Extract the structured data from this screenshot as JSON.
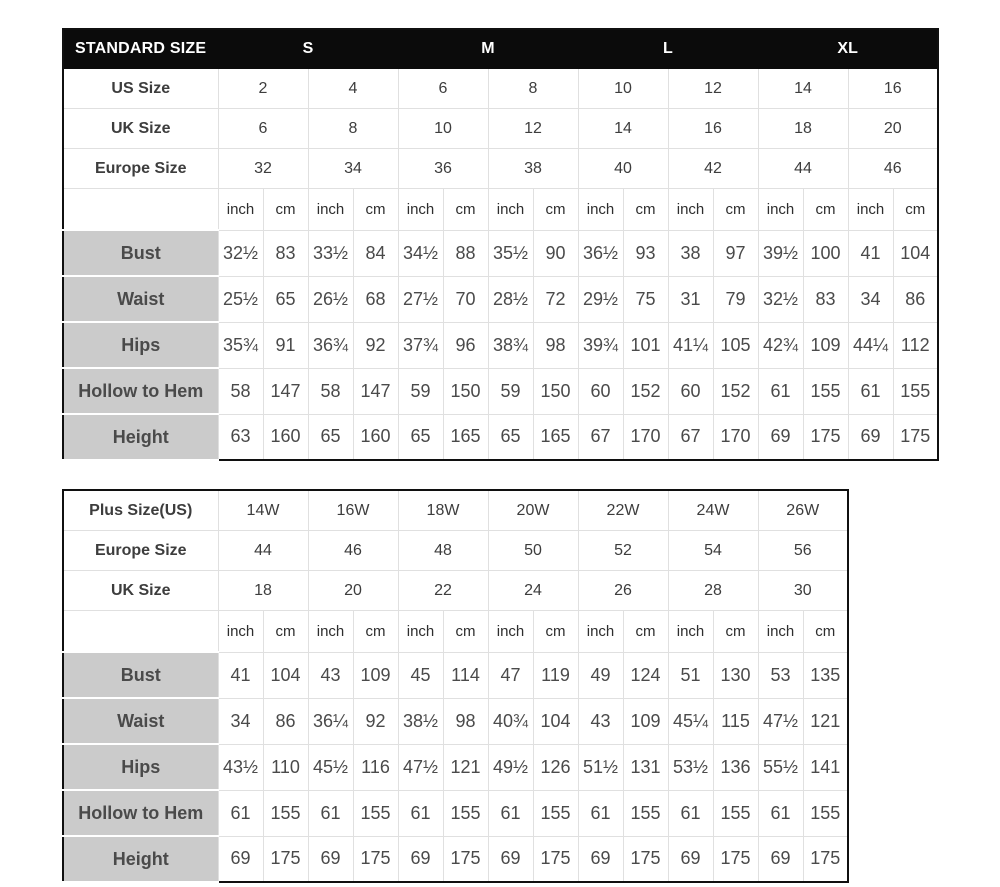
{
  "colors": {
    "header_bg": "#0b0b0b",
    "header_text": "#ffffff",
    "label_cell_bg": "#cbcbcb",
    "grid_line": "#e0e0e0",
    "outer_border": "#101010",
    "data_text": "#4a4a4a",
    "label_text": "#111111"
  },
  "standard_table": {
    "title": "STANDARD SIZE",
    "size_groups": [
      "S",
      "M",
      "L",
      "XL"
    ],
    "unit_pair": [
      "inch",
      "cm"
    ],
    "size_rows": [
      {
        "label": "US Size",
        "values": [
          "2",
          "4",
          "6",
          "8",
          "10",
          "12",
          "14",
          "16"
        ]
      },
      {
        "label": "UK Size",
        "values": [
          "6",
          "8",
          "10",
          "12",
          "14",
          "16",
          "18",
          "20"
        ]
      },
      {
        "label": "Europe Size",
        "values": [
          "32",
          "34",
          "36",
          "38",
          "40",
          "42",
          "44",
          "46"
        ]
      }
    ],
    "measure_rows": [
      {
        "label": "Bust",
        "values": [
          "32½",
          "83",
          "33½",
          "84",
          "34½",
          "88",
          "35½",
          "90",
          "36½",
          "93",
          "38",
          "97",
          "39½",
          "100",
          "41",
          "104"
        ]
      },
      {
        "label": "Waist",
        "values": [
          "25½",
          "65",
          "26½",
          "68",
          "27½",
          "70",
          "28½",
          "72",
          "29½",
          "75",
          "31",
          "79",
          "32½",
          "83",
          "34",
          "86"
        ]
      },
      {
        "label": "Hips",
        "values": [
          "35¾",
          "91",
          "36¾",
          "92",
          "37¾",
          "96",
          "38¾",
          "98",
          "39¾",
          "101",
          "41¼",
          "105",
          "42¾",
          "109",
          "44¼",
          "112"
        ]
      },
      {
        "label": "Hollow to Hem",
        "values": [
          "58",
          "147",
          "58",
          "147",
          "59",
          "150",
          "59",
          "150",
          "60",
          "152",
          "60",
          "152",
          "61",
          "155",
          "61",
          "155"
        ]
      },
      {
        "label": "Height",
        "values": [
          "63",
          "160",
          "65",
          "160",
          "65",
          "165",
          "65",
          "165",
          "67",
          "170",
          "67",
          "170",
          "69",
          "175",
          "69",
          "175"
        ]
      }
    ]
  },
  "plus_table": {
    "unit_pair": [
      "inch",
      "cm"
    ],
    "size_rows": [
      {
        "label": "Plus Size(US)",
        "values": [
          "14W",
          "16W",
          "18W",
          "20W",
          "22W",
          "24W",
          "26W"
        ]
      },
      {
        "label": "Europe Size",
        "values": [
          "44",
          "46",
          "48",
          "50",
          "52",
          "54",
          "56"
        ]
      },
      {
        "label": "UK Size",
        "values": [
          "18",
          "20",
          "22",
          "24",
          "26",
          "28",
          "30"
        ]
      }
    ],
    "measure_rows": [
      {
        "label": "Bust",
        "values": [
          "41",
          "104",
          "43",
          "109",
          "45",
          "114",
          "47",
          "119",
          "49",
          "124",
          "51",
          "130",
          "53",
          "135"
        ]
      },
      {
        "label": "Waist",
        "values": [
          "34",
          "86",
          "36¼",
          "92",
          "38½",
          "98",
          "40¾",
          "104",
          "43",
          "109",
          "45¼",
          "115",
          "47½",
          "121"
        ]
      },
      {
        "label": "Hips",
        "values": [
          "43½",
          "110",
          "45½",
          "116",
          "47½",
          "121",
          "49½",
          "126",
          "51½",
          "131",
          "53½",
          "136",
          "55½",
          "141"
        ]
      },
      {
        "label": "Hollow to Hem",
        "values": [
          "61",
          "155",
          "61",
          "155",
          "61",
          "155",
          "61",
          "155",
          "61",
          "155",
          "61",
          "155",
          "61",
          "155"
        ]
      },
      {
        "label": "Height",
        "values": [
          "69",
          "175",
          "69",
          "175",
          "69",
          "175",
          "69",
          "175",
          "69",
          "175",
          "69",
          "175",
          "69",
          "175"
        ]
      }
    ]
  }
}
